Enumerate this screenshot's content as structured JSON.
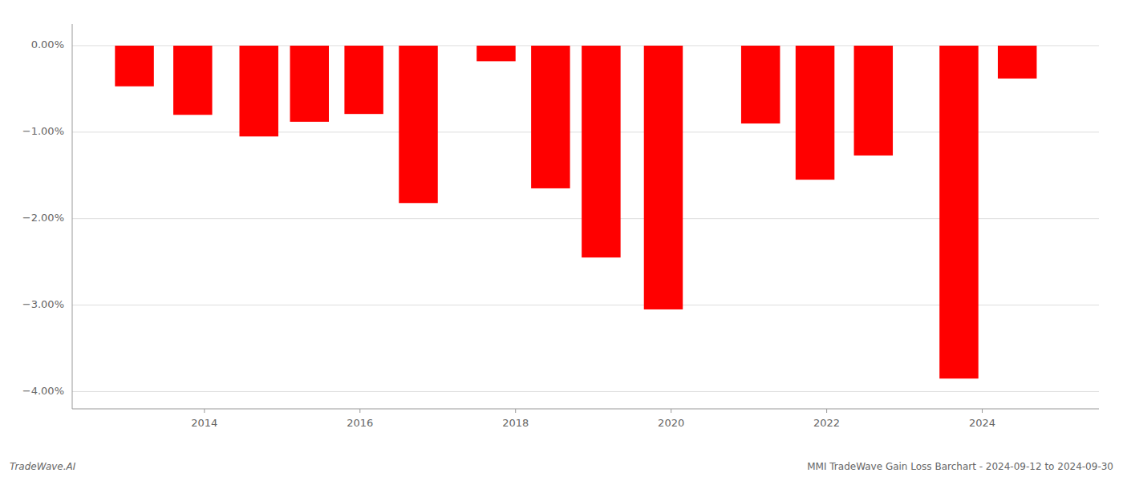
{
  "chart_data": {
    "type": "bar",
    "x": [
      2013.1,
      2013.85,
      2014.7,
      2015.35,
      2016.05,
      2016.75,
      2017.75,
      2018.45,
      2019.1,
      2019.9,
      2021.15,
      2021.85,
      2022.6,
      2023.7,
      2024.45
    ],
    "values": [
      -0.0047,
      -0.008,
      -0.0105,
      -0.0088,
      -0.0079,
      -0.0182,
      -0.0018,
      -0.0165,
      -0.0245,
      -0.0305,
      -0.009,
      -0.0155,
      -0.0127,
      -0.0385,
      -0.0038
    ],
    "color": "#ff0000",
    "xlim": [
      2012.3,
      2025.5
    ],
    "xticks": [
      2014,
      2016,
      2018,
      2020,
      2022,
      2024
    ],
    "ylim": [
      -0.042,
      0.0025
    ],
    "yticks": [
      {
        "value": 0.0,
        "label": "0.00%"
      },
      {
        "value": -0.01,
        "label": "−1.00%"
      },
      {
        "value": -0.02,
        "label": "−2.00%"
      },
      {
        "value": -0.03,
        "label": "−3.00%"
      },
      {
        "value": -0.04,
        "label": "−4.00%"
      }
    ],
    "grid": true,
    "annotations": [
      "TradeWave.AI",
      "MMI TradeWave Gain Loss Barchart - 2024-09-12 to 2024-09-30"
    ]
  }
}
